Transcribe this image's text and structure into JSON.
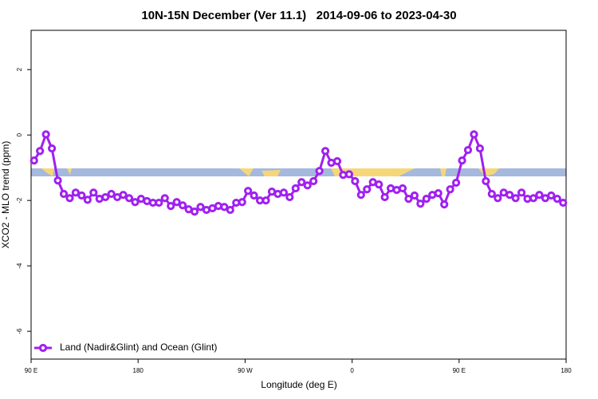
{
  "chart_data": {
    "type": "line",
    "title": "10N-15N December (Ver 11.1)   2014-09-06 to 2023-04-30",
    "x_label": "Longitude (deg E)",
    "y_label": "XCO2 - MLO trend (ppm)",
    "xlim": [
      90,
      540
    ],
    "xticks": [
      {
        "value": 90,
        "label": "90 E"
      },
      180,
      {
        "value": 270,
        "label": "90 W"
      },
      {
        "value": 360,
        "label": "0"
      },
      {
        "value": 450,
        "label": "90 E"
      },
      {
        "value": 540,
        "label": "180"
      }
    ],
    "ylim": [
      -6.85,
      3.2
    ],
    "yticks": [
      -6,
      -4,
      -2,
      0,
      2
    ],
    "legend": "lower left",
    "x": [
      92.5,
      97.5,
      102.5,
      107.5,
      112.5,
      117.5,
      122.5,
      127.5,
      132.5,
      137.5,
      142.5,
      147.5,
      152.5,
      157.5,
      162.5,
      167.5,
      172.5,
      177.5,
      182.5,
      187.5,
      192.5,
      197.5,
      202.5,
      207.5,
      212.5,
      217.5,
      222.5,
      227.5,
      232.5,
      237.5,
      242.5,
      247.5,
      252.5,
      257.5,
      262.5,
      267.5,
      272.5,
      277.5,
      282.5,
      287.5,
      292.5,
      297.5,
      302.5,
      307.5,
      312.5,
      317.5,
      322.5,
      327.5,
      332.5,
      337.5,
      342.5,
      347.5,
      352.5,
      357.5,
      362.5,
      367.5,
      372.5,
      377.5,
      382.5,
      387.5,
      392.5,
      397.5,
      402.5,
      407.5,
      412.5,
      417.5,
      422.5,
      427.5,
      432.5,
      437.5,
      442.5,
      447.5,
      452.5,
      457.5,
      462.5,
      467.5,
      472.5,
      477.5,
      482.5,
      487.5,
      492.5,
      497.5,
      502.5,
      507.5,
      512.5,
      517.5,
      522.5,
      527.5,
      532.5,
      537.5
    ],
    "series": [
      {
        "name": "Land (Nadir&Glint) and Ocean (Glint)",
        "color": "#a020f0",
        "values": [
          -0.78,
          -0.49,
          0.02,
          -0.41,
          -1.39,
          -1.8,
          -1.93,
          -1.76,
          -1.85,
          -1.98,
          -1.76,
          -1.95,
          -1.9,
          -1.8,
          -1.9,
          -1.83,
          -1.93,
          -2.05,
          -1.95,
          -2.02,
          -2.07,
          -2.07,
          -1.93,
          -2.17,
          -2.05,
          -2.15,
          -2.27,
          -2.34,
          -2.2,
          -2.29,
          -2.24,
          -2.17,
          -2.2,
          -2.29,
          -2.07,
          -2.05,
          -1.71,
          -1.85,
          -2.0,
          -2.0,
          -1.73,
          -1.8,
          -1.76,
          -1.9,
          -1.63,
          -1.44,
          -1.54,
          -1.41,
          -1.1,
          -0.49,
          -0.85,
          -0.8,
          -1.22,
          -1.2,
          -1.41,
          -1.83,
          -1.66,
          -1.44,
          -1.51,
          -1.9,
          -1.63,
          -1.68,
          -1.63,
          -1.95,
          -1.85,
          -2.1,
          -1.95,
          -1.83,
          -1.78,
          -2.12,
          -1.66,
          -1.46,
          -0.78,
          -0.46,
          0.02,
          -0.41,
          -1.41,
          -1.8,
          -1.93,
          -1.76,
          -1.83,
          -1.93,
          -1.76,
          -1.95,
          -1.93,
          -1.83,
          -1.93,
          -1.85,
          -1.95,
          -2.07
        ]
      }
    ]
  }
}
